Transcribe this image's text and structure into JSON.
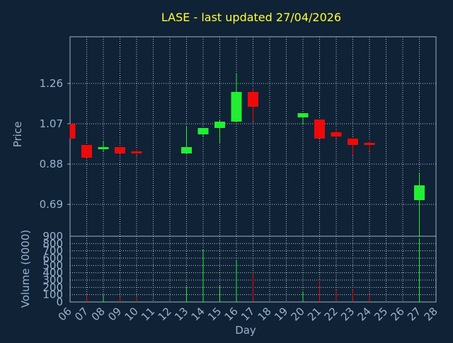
{
  "chart_data": {
    "type": "candlestick",
    "title": "LASE - last updated 27/04/2026",
    "xlabel": "Day",
    "ylabel": "Price",
    "volume_ylabel": "Volume (0000)",
    "colors": {
      "background": "#0f2236",
      "grid": "#b8c3cc",
      "frame": "#9fb0bf",
      "title": "#ffff33",
      "label": "#9bb3cc",
      "up": "#22ee33",
      "down": "#ee0a0a"
    },
    "grid": true,
    "x": [
      "06",
      "07",
      "08",
      "09",
      "10",
      "11",
      "12",
      "13",
      "14",
      "15",
      "16",
      "17",
      "18",
      "19",
      "20",
      "21",
      "22",
      "23",
      "24",
      "25",
      "26",
      "27",
      "28"
    ],
    "price_ylim": [
      0.54,
      1.48
    ],
    "price_ticks": [
      0.69,
      0.88,
      1.07,
      1.26
    ],
    "volume_ylim": [
      0,
      900
    ],
    "volume_ticks": [
      0,
      100,
      200,
      300,
      400,
      500,
      600,
      700,
      800,
      900
    ],
    "candles": [
      {
        "x": "06",
        "open": 1.07,
        "high": 1.07,
        "low": 1.0,
        "close": 1.0
      },
      {
        "x": "07",
        "open": 0.97,
        "high": 0.97,
        "low": 0.91,
        "close": 0.91
      },
      {
        "x": "08",
        "open": 0.95,
        "high": 0.99,
        "low": 0.94,
        "close": 0.96
      },
      {
        "x": "09",
        "open": 0.96,
        "high": 0.96,
        "low": 0.93,
        "close": 0.93
      },
      {
        "x": "10",
        "open": 0.94,
        "high": 0.95,
        "low": 0.92,
        "close": 0.93
      },
      {
        "x": "13",
        "open": 0.93,
        "high": 1.06,
        "low": 0.93,
        "close": 0.96
      },
      {
        "x": "14",
        "open": 1.02,
        "high": 1.05,
        "low": 1.01,
        "close": 1.05
      },
      {
        "x": "15",
        "open": 1.05,
        "high": 1.09,
        "low": 0.98,
        "close": 1.08
      },
      {
        "x": "16",
        "open": 1.08,
        "high": 1.31,
        "low": 1.08,
        "close": 1.22
      },
      {
        "x": "17",
        "open": 1.22,
        "high": 1.24,
        "low": 1.08,
        "close": 1.15
      },
      {
        "x": "20",
        "open": 1.1,
        "high": 1.12,
        "low": 1.07,
        "close": 1.12
      },
      {
        "x": "21",
        "open": 1.09,
        "high": 1.09,
        "low": 1.0,
        "close": 1.0
      },
      {
        "x": "22",
        "open": 1.03,
        "high": 1.05,
        "low": 1.0,
        "close": 1.01
      },
      {
        "x": "23",
        "open": 1.0,
        "high": 1.0,
        "low": 0.92,
        "close": 0.97
      },
      {
        "x": "24",
        "open": 0.98,
        "high": 0.99,
        "low": 0.94,
        "close": 0.97
      },
      {
        "x": "27",
        "open": 0.71,
        "high": 0.84,
        "low": 0.54,
        "close": 0.78
      }
    ],
    "volume": [
      {
        "x": "07",
        "value": 100,
        "dir": "down"
      },
      {
        "x": "08",
        "value": 100,
        "dir": "up"
      },
      {
        "x": "09",
        "value": 80,
        "dir": "down"
      },
      {
        "x": "10",
        "value": 70,
        "dir": "down"
      },
      {
        "x": "13",
        "value": 210,
        "dir": "up"
      },
      {
        "x": "14",
        "value": 720,
        "dir": "up"
      },
      {
        "x": "15",
        "value": 220,
        "dir": "up"
      },
      {
        "x": "16",
        "value": 580,
        "dir": "up"
      },
      {
        "x": "17",
        "value": 390,
        "dir": "down"
      },
      {
        "x": "20",
        "value": 140,
        "dir": "up"
      },
      {
        "x": "21",
        "value": 290,
        "dir": "down"
      },
      {
        "x": "22",
        "value": 160,
        "dir": "down"
      },
      {
        "x": "23",
        "value": 170,
        "dir": "down"
      },
      {
        "x": "24",
        "value": 100,
        "dir": "down"
      },
      {
        "x": "27",
        "value": 870,
        "dir": "up"
      }
    ]
  }
}
